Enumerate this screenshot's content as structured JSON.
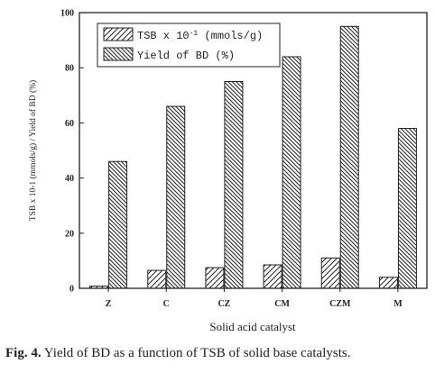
{
  "caption": {
    "label": "Fig. 4.",
    "text": " Yield of BD as a function of TSB of solid base catalysts."
  },
  "chart_data": {
    "type": "bar",
    "categories": [
      "Z",
      "C",
      "CZ",
      "CM",
      "CZM",
      "M"
    ],
    "series": [
      {
        "name": "TSB x 10",
        "values": [
          0.8,
          6.5,
          7.5,
          8.5,
          11,
          4
        ]
      },
      {
        "name": "Yield of BD (%)",
        "values": [
          46,
          66,
          75,
          84,
          95,
          58
        ]
      }
    ],
    "legend_superscript": "-1",
    "legend_units": " (mmols/g)",
    "xlabel": "Solid acid catalyst",
    "ylabel": "TSB x 10-1 (mmols/g) / Yield of BD (%)",
    "yticks": [
      0,
      20,
      40,
      60,
      80,
      100
    ],
    "ytick_labels": [
      "0",
      "20",
      "40",
      "60",
      "80",
      "100"
    ],
    "ylim": [
      0,
      100
    ],
    "legend_position": "top-left",
    "grid": false,
    "colors": {
      "bars": "#222222",
      "fill": "#ffffff"
    }
  }
}
